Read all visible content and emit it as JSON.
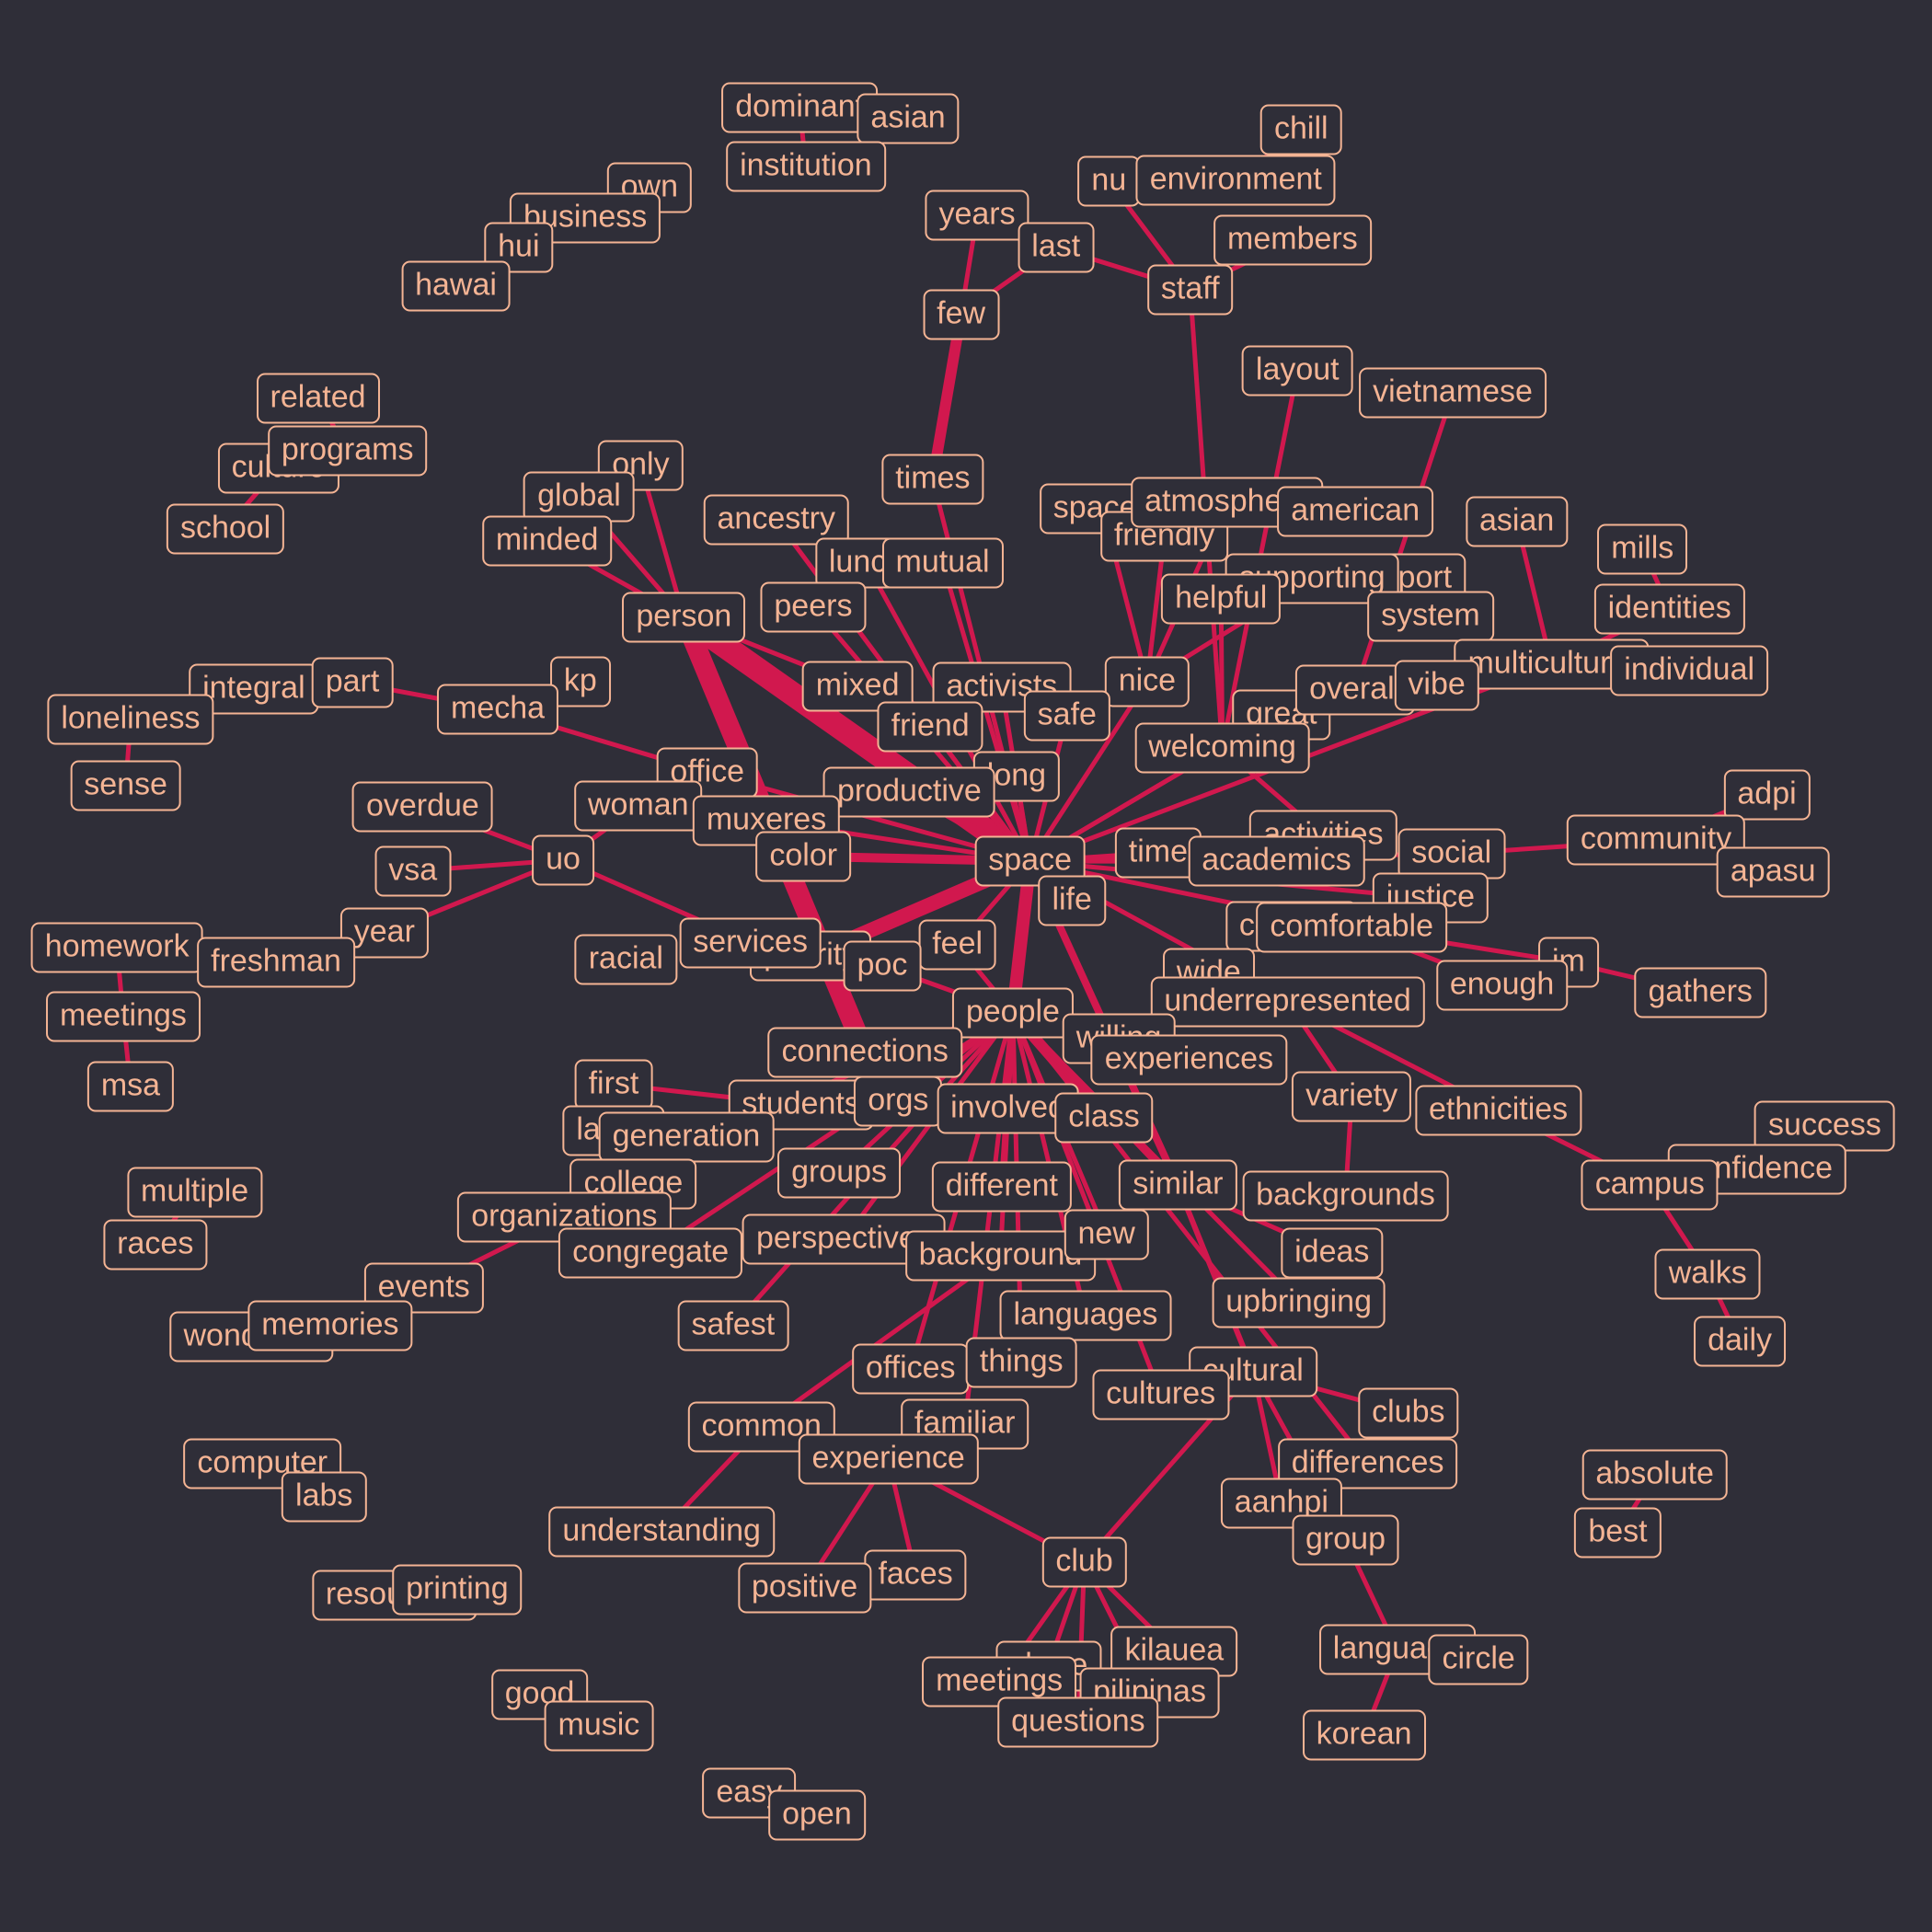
{
  "colors": {
    "background": "#2f2e38",
    "edge": "#d1184e",
    "label": "#f4b494"
  },
  "nodes": [
    {
      "id": "dominant",
      "label": "dominant"
    },
    {
      "id": "asian1",
      "label": "asian"
    },
    {
      "id": "institution",
      "label": "institution"
    },
    {
      "id": "own",
      "label": "own"
    },
    {
      "id": "business",
      "label": "business"
    },
    {
      "id": "hui",
      "label": "hui"
    },
    {
      "id": "hawai",
      "label": "hawai"
    },
    {
      "id": "chill",
      "label": "chill"
    },
    {
      "id": "nu",
      "label": "nu"
    },
    {
      "id": "environment",
      "label": "environment"
    },
    {
      "id": "members",
      "label": "members"
    },
    {
      "id": "staff",
      "label": "staff"
    },
    {
      "id": "years",
      "label": "years"
    },
    {
      "id": "last",
      "label": "last"
    },
    {
      "id": "few",
      "label": "few"
    },
    {
      "id": "related",
      "label": "related"
    },
    {
      "id": "culture",
      "label": "culture"
    },
    {
      "id": "programs",
      "label": "programs"
    },
    {
      "id": "school",
      "label": "school"
    },
    {
      "id": "layout",
      "label": "layout"
    },
    {
      "id": "vietnamese",
      "label": "vietnamese"
    },
    {
      "id": "only",
      "label": "only"
    },
    {
      "id": "global",
      "label": "global"
    },
    {
      "id": "minded",
      "label": "minded"
    },
    {
      "id": "times",
      "label": "times"
    },
    {
      "id": "ancestry",
      "label": "ancestry"
    },
    {
      "id": "lunch",
      "label": "lunch"
    },
    {
      "id": "mutual",
      "label": "mutual"
    },
    {
      "id": "spaces",
      "label": "spaces"
    },
    {
      "id": "friendly",
      "label": "friendly"
    },
    {
      "id": "atmosphere",
      "label": "atmosphere"
    },
    {
      "id": "american",
      "label": "american"
    },
    {
      "id": "asian2",
      "label": "asian"
    },
    {
      "id": "mills",
      "label": "mills"
    },
    {
      "id": "identities",
      "label": "identities"
    },
    {
      "id": "peers",
      "label": "peers"
    },
    {
      "id": "person",
      "label": "person"
    },
    {
      "id": "support",
      "label": "support"
    },
    {
      "id": "supporting",
      "label": "supporting"
    },
    {
      "id": "helpful",
      "label": "helpful"
    },
    {
      "id": "system",
      "label": "system"
    },
    {
      "id": "multicultural",
      "label": "multicultural"
    },
    {
      "id": "individual",
      "label": "individual"
    },
    {
      "id": "integral",
      "label": "integral"
    },
    {
      "id": "part",
      "label": "part"
    },
    {
      "id": "kp",
      "label": "kp"
    },
    {
      "id": "mecha",
      "label": "mecha"
    },
    {
      "id": "mixed",
      "label": "mixed"
    },
    {
      "id": "activists",
      "label": "activists"
    },
    {
      "id": "nice",
      "label": "nice"
    },
    {
      "id": "safe",
      "label": "safe"
    },
    {
      "id": "great",
      "label": "great"
    },
    {
      "id": "overall",
      "label": "overall"
    },
    {
      "id": "vibe",
      "label": "vibe"
    },
    {
      "id": "loneliness",
      "label": "loneliness"
    },
    {
      "id": "sense",
      "label": "sense"
    },
    {
      "id": "friend",
      "label": "friend"
    },
    {
      "id": "welcoming",
      "label": "welcoming"
    },
    {
      "id": "office",
      "label": "office"
    },
    {
      "id": "long",
      "label": "long"
    },
    {
      "id": "productive",
      "label": "productive"
    },
    {
      "id": "overdue",
      "label": "overdue"
    },
    {
      "id": "woman",
      "label": "woman"
    },
    {
      "id": "muxeres",
      "label": "muxeres"
    },
    {
      "id": "adpi",
      "label": "adpi"
    },
    {
      "id": "activities",
      "label": "activities"
    },
    {
      "id": "community",
      "label": "community"
    },
    {
      "id": "vsa",
      "label": "vsa"
    },
    {
      "id": "uo",
      "label": "uo"
    },
    {
      "id": "color",
      "label": "color"
    },
    {
      "id": "space",
      "label": "space"
    },
    {
      "id": "time",
      "label": "time"
    },
    {
      "id": "academics",
      "label": "academics"
    },
    {
      "id": "social",
      "label": "social"
    },
    {
      "id": "apasu",
      "label": "apasu"
    },
    {
      "id": "life",
      "label": "life"
    },
    {
      "id": "justice",
      "label": "justice"
    },
    {
      "id": "year",
      "label": "year"
    },
    {
      "id": "homework",
      "label": "homework"
    },
    {
      "id": "freshman",
      "label": "freshman"
    },
    {
      "id": "racial",
      "label": "racial"
    },
    {
      "id": "priority",
      "label": "priority"
    },
    {
      "id": "services",
      "label": "services"
    },
    {
      "id": "feel",
      "label": "feel"
    },
    {
      "id": "poc",
      "label": "poc"
    },
    {
      "id": "comfort",
      "label": "comfort"
    },
    {
      "id": "comfortable",
      "label": "comfortable"
    },
    {
      "id": "im",
      "label": "im"
    },
    {
      "id": "enough",
      "label": "enough"
    },
    {
      "id": "gathers",
      "label": "gathers"
    },
    {
      "id": "wide",
      "label": "wide"
    },
    {
      "id": "underrepresented",
      "label": "underrepresented"
    },
    {
      "id": "meetings1",
      "label": "meetings"
    },
    {
      "id": "people",
      "label": "people"
    },
    {
      "id": "willing",
      "label": "willing"
    },
    {
      "id": "connections",
      "label": "connections"
    },
    {
      "id": "experiences",
      "label": "experiences"
    },
    {
      "id": "msa",
      "label": "msa"
    },
    {
      "id": "first",
      "label": "first"
    },
    {
      "id": "students",
      "label": "students"
    },
    {
      "id": "orgs",
      "label": "orgs"
    },
    {
      "id": "involved",
      "label": "involved"
    },
    {
      "id": "class",
      "label": "class"
    },
    {
      "id": "variety",
      "label": "variety"
    },
    {
      "id": "ethnicities",
      "label": "ethnicities"
    },
    {
      "id": "success",
      "label": "success"
    },
    {
      "id": "latina",
      "label": "latina"
    },
    {
      "id": "generation",
      "label": "generation"
    },
    {
      "id": "confidence",
      "label": "confidence"
    },
    {
      "id": "groups",
      "label": "groups"
    },
    {
      "id": "college",
      "label": "college"
    },
    {
      "id": "different",
      "label": "different"
    },
    {
      "id": "similar",
      "label": "similar"
    },
    {
      "id": "backgrounds",
      "label": "backgrounds"
    },
    {
      "id": "campus",
      "label": "campus"
    },
    {
      "id": "multiple",
      "label": "multiple"
    },
    {
      "id": "organizations",
      "label": "organizations"
    },
    {
      "id": "races",
      "label": "races"
    },
    {
      "id": "congregate",
      "label": "congregate"
    },
    {
      "id": "perspectives",
      "label": "perspectives"
    },
    {
      "id": "background",
      "label": "background"
    },
    {
      "id": "new",
      "label": "new"
    },
    {
      "id": "ideas",
      "label": "ideas"
    },
    {
      "id": "walks",
      "label": "walks"
    },
    {
      "id": "events",
      "label": "events"
    },
    {
      "id": "upbringing",
      "label": "upbringing"
    },
    {
      "id": "wonderful",
      "label": "wonderful"
    },
    {
      "id": "memories",
      "label": "memories"
    },
    {
      "id": "safest",
      "label": "safest"
    },
    {
      "id": "languages1",
      "label": "languages"
    },
    {
      "id": "daily",
      "label": "daily"
    },
    {
      "id": "offices",
      "label": "offices"
    },
    {
      "id": "things",
      "label": "things"
    },
    {
      "id": "cultural",
      "label": "cultural"
    },
    {
      "id": "cultures",
      "label": "cultures"
    },
    {
      "id": "clubs",
      "label": "clubs"
    },
    {
      "id": "common",
      "label": "common"
    },
    {
      "id": "familiar",
      "label": "familiar"
    },
    {
      "id": "computer",
      "label": "computer"
    },
    {
      "id": "experience",
      "label": "experience"
    },
    {
      "id": "differences",
      "label": "differences"
    },
    {
      "id": "absolute",
      "label": "absolute"
    },
    {
      "id": "labs",
      "label": "labs"
    },
    {
      "id": "aanhpi",
      "label": "aanhpi"
    },
    {
      "id": "understanding",
      "label": "understanding"
    },
    {
      "id": "group",
      "label": "group"
    },
    {
      "id": "best",
      "label": "best"
    },
    {
      "id": "club",
      "label": "club"
    },
    {
      "id": "faces",
      "label": "faces"
    },
    {
      "id": "resources",
      "label": "resources"
    },
    {
      "id": "printing",
      "label": "printing"
    },
    {
      "id": "positive",
      "label": "positive"
    },
    {
      "id": "language2",
      "label": "language"
    },
    {
      "id": "kilauea",
      "label": "kilauea"
    },
    {
      "id": "circle",
      "label": "circle"
    },
    {
      "id": "shere",
      "label": "shere"
    },
    {
      "id": "meetings2",
      "label": "meetings"
    },
    {
      "id": "pilipinas",
      "label": "pilipinas"
    },
    {
      "id": "good",
      "label": "good"
    },
    {
      "id": "questions",
      "label": "questions"
    },
    {
      "id": "music",
      "label": "music"
    },
    {
      "id": "korean",
      "label": "korean"
    },
    {
      "id": "easy",
      "label": "easy"
    },
    {
      "id": "open",
      "label": "open"
    }
  ],
  "edges": [
    [
      "person",
      "space",
      26
    ],
    [
      "connections",
      "person",
      22
    ],
    [
      "few",
      "times",
      12
    ],
    [
      "priority",
      "space",
      16
    ],
    [
      "space",
      "people",
      14
    ],
    [
      "people",
      "class",
      12
    ],
    [
      "color",
      "space",
      10
    ],
    [
      "productive",
      "space",
      9
    ],
    [
      "space",
      "similar",
      8
    ],
    [
      "people",
      "similar",
      7
    ],
    [
      "different",
      "people",
      6
    ],
    [
      "similar",
      "cultural",
      6
    ],
    [
      "people",
      "experiences",
      5
    ],
    [
      "space",
      "welcoming",
      5
    ],
    [
      "space",
      "nice",
      5
    ],
    [
      "space",
      "activists",
      5
    ],
    [
      "space",
      "feel",
      5
    ],
    [
      "space",
      "life",
      5
    ],
    [
      "space",
      "comfortable",
      5
    ],
    [
      "space",
      "academics",
      5
    ],
    [
      "space",
      "time",
      5
    ],
    [
      "people",
      "willing",
      5
    ],
    [
      "people",
      "connections",
      5
    ],
    [
      "people",
      "orgs",
      5
    ],
    [
      "people",
      "involved",
      5
    ],
    [
      "people",
      "background",
      5
    ],
    [
      "people",
      "languages1",
      5
    ],
    [
      "people",
      "new",
      5
    ],
    [
      "people",
      "upbringing",
      5
    ],
    [
      "people",
      "differences",
      5
    ],
    [
      "people",
      "groups",
      5
    ],
    [
      "people",
      "students",
      5
    ],
    [
      "people",
      "poc",
      5
    ],
    [
      "people",
      "feel",
      5
    ],
    [
      "people",
      "space",
      5
    ],
    [
      "few",
      "years",
      5
    ],
    [
      "few",
      "last",
      5
    ],
    [
      "staff",
      "last",
      5
    ],
    [
      "staff",
      "nu",
      5
    ],
    [
      "staff",
      "members",
      5
    ],
    [
      "staff",
      "welcoming",
      5
    ],
    [
      "welcoming",
      "layout",
      5
    ],
    [
      "welcoming",
      "helpful",
      5
    ],
    [
      "welcoming",
      "great",
      5
    ],
    [
      "welcoming",
      "activities",
      5
    ],
    [
      "welcoming",
      "space",
      5
    ],
    [
      "vietnamese",
      "overall",
      5
    ],
    [
      "nice",
      "friendly",
      5
    ],
    [
      "nice",
      "atmosphere",
      5
    ],
    [
      "nice",
      "spaces",
      5
    ],
    [
      "nice",
      "supporting",
      5
    ],
    [
      "multicultural",
      "asian2",
      5
    ],
    [
      "multicultural",
      "identities",
      5
    ],
    [
      "multicultural",
      "space",
      5
    ],
    [
      "space",
      "social",
      5
    ],
    [
      "social",
      "community",
      5
    ],
    [
      "space",
      "justice",
      5
    ],
    [
      "comfortable",
      "enough",
      5
    ],
    [
      "comfortable",
      "im",
      5
    ],
    [
      "im",
      "gathers",
      5
    ],
    [
      "space",
      "underrepresented",
      5
    ],
    [
      "underrepresented",
      "variety",
      5
    ],
    [
      "underrepresented",
      "ethnicities",
      5
    ],
    [
      "ethnicities",
      "campus",
      5
    ],
    [
      "campus",
      "confidence",
      5
    ],
    [
      "campus",
      "walks",
      5
    ],
    [
      "walks",
      "daily",
      5
    ],
    [
      "variety",
      "backgrounds",
      5
    ],
    [
      "similar",
      "ideas",
      5
    ],
    [
      "cultural",
      "clubs",
      5
    ],
    [
      "cultural",
      "club",
      5
    ],
    [
      "cultural",
      "group",
      5
    ],
    [
      "cultural",
      "aanhpi",
      5
    ],
    [
      "club",
      "experience",
      5
    ],
    [
      "club",
      "shere",
      5
    ],
    [
      "club",
      "kilauea",
      5
    ],
    [
      "club",
      "pilipinas",
      5
    ],
    [
      "club",
      "meetings2",
      5
    ],
    [
      "club",
      "questions",
      5
    ],
    [
      "group",
      "language2",
      5
    ],
    [
      "language2",
      "korean",
      5
    ],
    [
      "experience",
      "faces",
      5
    ],
    [
      "experience",
      "positive",
      5
    ],
    [
      "common",
      "understanding",
      5
    ],
    [
      "common",
      "background",
      5
    ],
    [
      "offices",
      "people",
      5
    ],
    [
      "things",
      "people",
      5
    ],
    [
      "safest",
      "people",
      5
    ],
    [
      "cultures",
      "people",
      5
    ],
    [
      "familiar",
      "people",
      5
    ],
    [
      "organizations",
      "events",
      5
    ],
    [
      "organizations",
      "people",
      5
    ],
    [
      "college",
      "people",
      5
    ],
    [
      "generation",
      "people",
      5
    ],
    [
      "first",
      "students",
      5
    ],
    [
      "congregate",
      "people",
      5
    ],
    [
      "perspectives",
      "people",
      5
    ],
    [
      "uo",
      "overdue",
      5
    ],
    [
      "uo",
      "vsa",
      5
    ],
    [
      "uo",
      "year",
      5
    ],
    [
      "uo",
      "woman",
      5
    ],
    [
      "uo",
      "services",
      5
    ],
    [
      "year",
      "freshman",
      5
    ],
    [
      "homework",
      "meetings1",
      5
    ],
    [
      "meetings1",
      "msa",
      5
    ],
    [
      "loneliness",
      "sense",
      5
    ],
    [
      "part",
      "mecha",
      5
    ],
    [
      "mecha",
      "kp",
      5
    ],
    [
      "mecha",
      "office",
      5
    ],
    [
      "office",
      "space",
      5
    ],
    [
      "person",
      "global",
      5
    ],
    [
      "person",
      "minded",
      5
    ],
    [
      "person",
      "only",
      5
    ],
    [
      "person",
      "mixed",
      5
    ],
    [
      "ancestry",
      "space",
      5
    ],
    [
      "peers",
      "space",
      5
    ],
    [
      "lunch",
      "space",
      5
    ],
    [
      "mutual",
      "space",
      5
    ],
    [
      "times",
      "space",
      5
    ],
    [
      "friend",
      "space",
      5
    ],
    [
      "long",
      "space",
      5
    ],
    [
      "safe",
      "space",
      5
    ],
    [
      "woman",
      "muxeres",
      5
    ],
    [
      "muxeres",
      "space",
      5
    ],
    [
      "culture",
      "programs",
      5
    ],
    [
      "school",
      "culture",
      5
    ],
    [
      "hawai",
      "hui",
      5
    ],
    [
      "hui",
      "business",
      5
    ],
    [
      "business",
      "own",
      5
    ],
    [
      "institution",
      "dominant",
      5
    ],
    [
      "dominant",
      "asian1",
      5
    ],
    [
      "environment",
      "chill",
      5
    ],
    [
      "vibe",
      "overall",
      5
    ],
    [
      "mills",
      "identities",
      5
    ],
    [
      "individual",
      "multicultural",
      5
    ],
    [
      "adpi",
      "community",
      5
    ],
    [
      "apasu",
      "community",
      5
    ],
    [
      "multiple",
      "races",
      5
    ],
    [
      "wonderful",
      "memories",
      5
    ],
    [
      "computer",
      "labs",
      5
    ],
    [
      "resources",
      "printing",
      5
    ],
    [
      "good",
      "music",
      5
    ],
    [
      "easy",
      "open",
      5
    ],
    [
      "absolute",
      "best",
      5
    ],
    [
      "related",
      "programs",
      5
    ],
    [
      "integral",
      "part",
      5
    ],
    [
      "circle",
      "language2",
      5
    ]
  ]
}
